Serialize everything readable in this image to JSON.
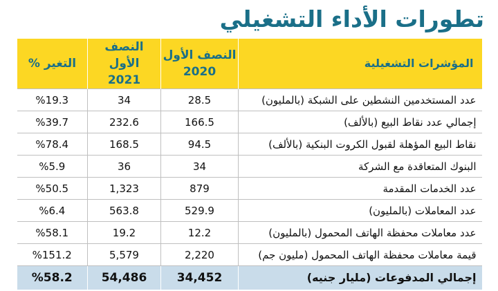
{
  "title": "تطورات الأداء التشغيلي",
  "table": {
    "headers": {
      "indicator": "المؤشرات التشغيلية",
      "h1_2020_line1": "النصف الأول",
      "h1_2020_line2": "2020",
      "h1_2021_line1": "النصف الأول",
      "h1_2021_line2": "2021",
      "change": "التغير %"
    },
    "rows": [
      {
        "label": "عدد المستخدمين النشطين على الشبكة (بالمليون)",
        "v2020": "28.5",
        "v2021": "34",
        "change": "%19.3"
      },
      {
        "label": "إجمالي عدد نقاط البيع (بالألف)",
        "v2020": "166.5",
        "v2021": "232.6",
        "change": "%39.7"
      },
      {
        "label": "نقاط البيع المؤهلة لقبول الكروت البنكية (بالألف)",
        "v2020": "94.5",
        "v2021": "168.5",
        "change": "%78.4"
      },
      {
        "label": "البنوك المتعاقدة مع الشركة",
        "v2020": "34",
        "v2021": "36",
        "change": "%5.9"
      },
      {
        "label": "عدد الخدمات المقدمة",
        "v2020": "879",
        "v2021": "1,323",
        "change": "%50.5"
      },
      {
        "label": "عدد المعاملات (بالمليون)",
        "v2020": "529.9",
        "v2021": "563.8",
        "change": "%6.4"
      },
      {
        "label": "عدد معاملات محفظة الهاتف المحمول (بالمليون)",
        "v2020": "12.2",
        "v2021": "19.2",
        "change": "%58.1"
      },
      {
        "label": "قيمة معاملات محفظة الهاتف المحمول (مليون جم)",
        "v2020": "2,220",
        "v2021": "5,579",
        "change": "%151.2"
      }
    ],
    "total": {
      "label": "إجمالي المدفوعات (مليار جنيه)",
      "v2020": "34,452",
      "v2021": "54,486",
      "change": "%58.2"
    }
  },
  "colors": {
    "title": "#1a6f88",
    "header_bg": "#fcd723",
    "total_bg": "#c9dcea"
  }
}
